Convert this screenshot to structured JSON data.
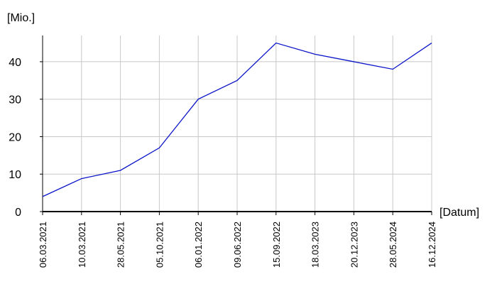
{
  "chart_data": {
    "type": "line",
    "y_label": "[Mio.]",
    "x_label": "[Datum]",
    "categories": [
      "06.03.2021",
      "10.03.2021",
      "28.05.2021",
      "05.10.2021",
      "06.01.2022",
      "09.06.2022",
      "15.09.2022",
      "18.03.2023",
      "20.12.2023",
      "28.05.2024",
      "16.12.2024"
    ],
    "series": [
      {
        "color": "#0a14c8",
        "values": [
          4,
          8.8,
          11,
          17,
          30,
          35,
          45,
          42,
          40,
          38,
          45
        ]
      }
    ],
    "ylim": [
      0,
      47
    ],
    "yticks": [
      0,
      10,
      20,
      30,
      40
    ],
    "grid": true
  }
}
